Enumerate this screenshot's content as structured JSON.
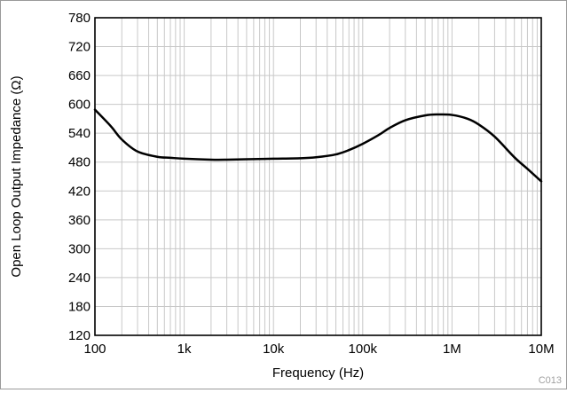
{
  "chart_data": {
    "type": "line",
    "title": "",
    "xlabel": "Frequency (Hz)",
    "ylabel": "Open Loop Output Impedance (Ω)",
    "xscale": "log",
    "xlim": [
      100,
      10000000
    ],
    "ylim": [
      120,
      780
    ],
    "x_ticks": [
      100,
      1000,
      10000,
      100000,
      1000000,
      10000000
    ],
    "x_tick_labels": [
      "100",
      "1k",
      "10k",
      "100k",
      "1M",
      "10M"
    ],
    "y_ticks": [
      120,
      180,
      240,
      300,
      360,
      420,
      480,
      540,
      600,
      660,
      720,
      780
    ],
    "y_tick_labels": [
      "120",
      "180",
      "240",
      "300",
      "360",
      "420",
      "480",
      "540",
      "600",
      "660",
      "720",
      "780"
    ],
    "grid": true,
    "legend": "none",
    "series": [
      {
        "color": "#000000",
        "x": [
          100,
          150,
          200,
          300,
          500,
          700,
          1000,
          2000,
          3000,
          5000,
          10000,
          20000,
          30000,
          50000,
          70000,
          100000,
          150000,
          200000,
          300000,
          500000,
          700000,
          1000000,
          1500000,
          2000000,
          3000000,
          5000000,
          7000000,
          10000000
        ],
        "y": [
          589,
          555,
          527,
          502,
          491,
          489,
          487,
          485,
          485,
          486,
          487,
          488,
          490,
          496,
          505,
          518,
          536,
          551,
          567,
          577,
          579,
          578,
          570,
          558,
          533,
          490,
          466,
          440
        ]
      }
    ],
    "figure_code": "C013"
  }
}
